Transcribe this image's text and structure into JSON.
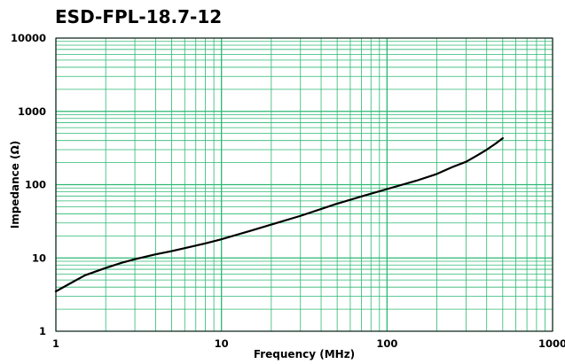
{
  "chart_data": {
    "type": "line",
    "title": "ESD-FPL-18.7-12",
    "xlabel": "Frequency (MHz)",
    "ylabel": "Impedance (Ω)",
    "xscale": "log",
    "yscale": "log",
    "xlim": [
      1,
      1000
    ],
    "ylim": [
      1,
      10000
    ],
    "x_ticks": [
      1,
      10,
      100,
      1000
    ],
    "x_tick_labels": [
      "1",
      "10",
      "100",
      "1000"
    ],
    "y_ticks": [
      1,
      10,
      100,
      1000,
      10000
    ],
    "y_tick_labels": [
      "1",
      "10",
      "100",
      "1000",
      "10000"
    ],
    "grid": true,
    "colors": {
      "grid": "#2db873",
      "line": "#000000",
      "frame": "#000000"
    },
    "series": [
      {
        "x": [
          1,
          1.2,
          1.5,
          2,
          2.5,
          3,
          4,
          5,
          6,
          8,
          10,
          15,
          20,
          30,
          50,
          70,
          100,
          150,
          200,
          250,
          300,
          350,
          400,
          450,
          500
        ],
        "y": [
          3.5,
          4.4,
          5.8,
          7.3,
          8.6,
          9.6,
          11.2,
          12.4,
          13.6,
          15.8,
          18,
          23.5,
          28.5,
          37.5,
          55,
          69,
          87,
          113,
          140,
          175,
          205,
          250,
          300,
          360,
          430
        ]
      }
    ]
  }
}
